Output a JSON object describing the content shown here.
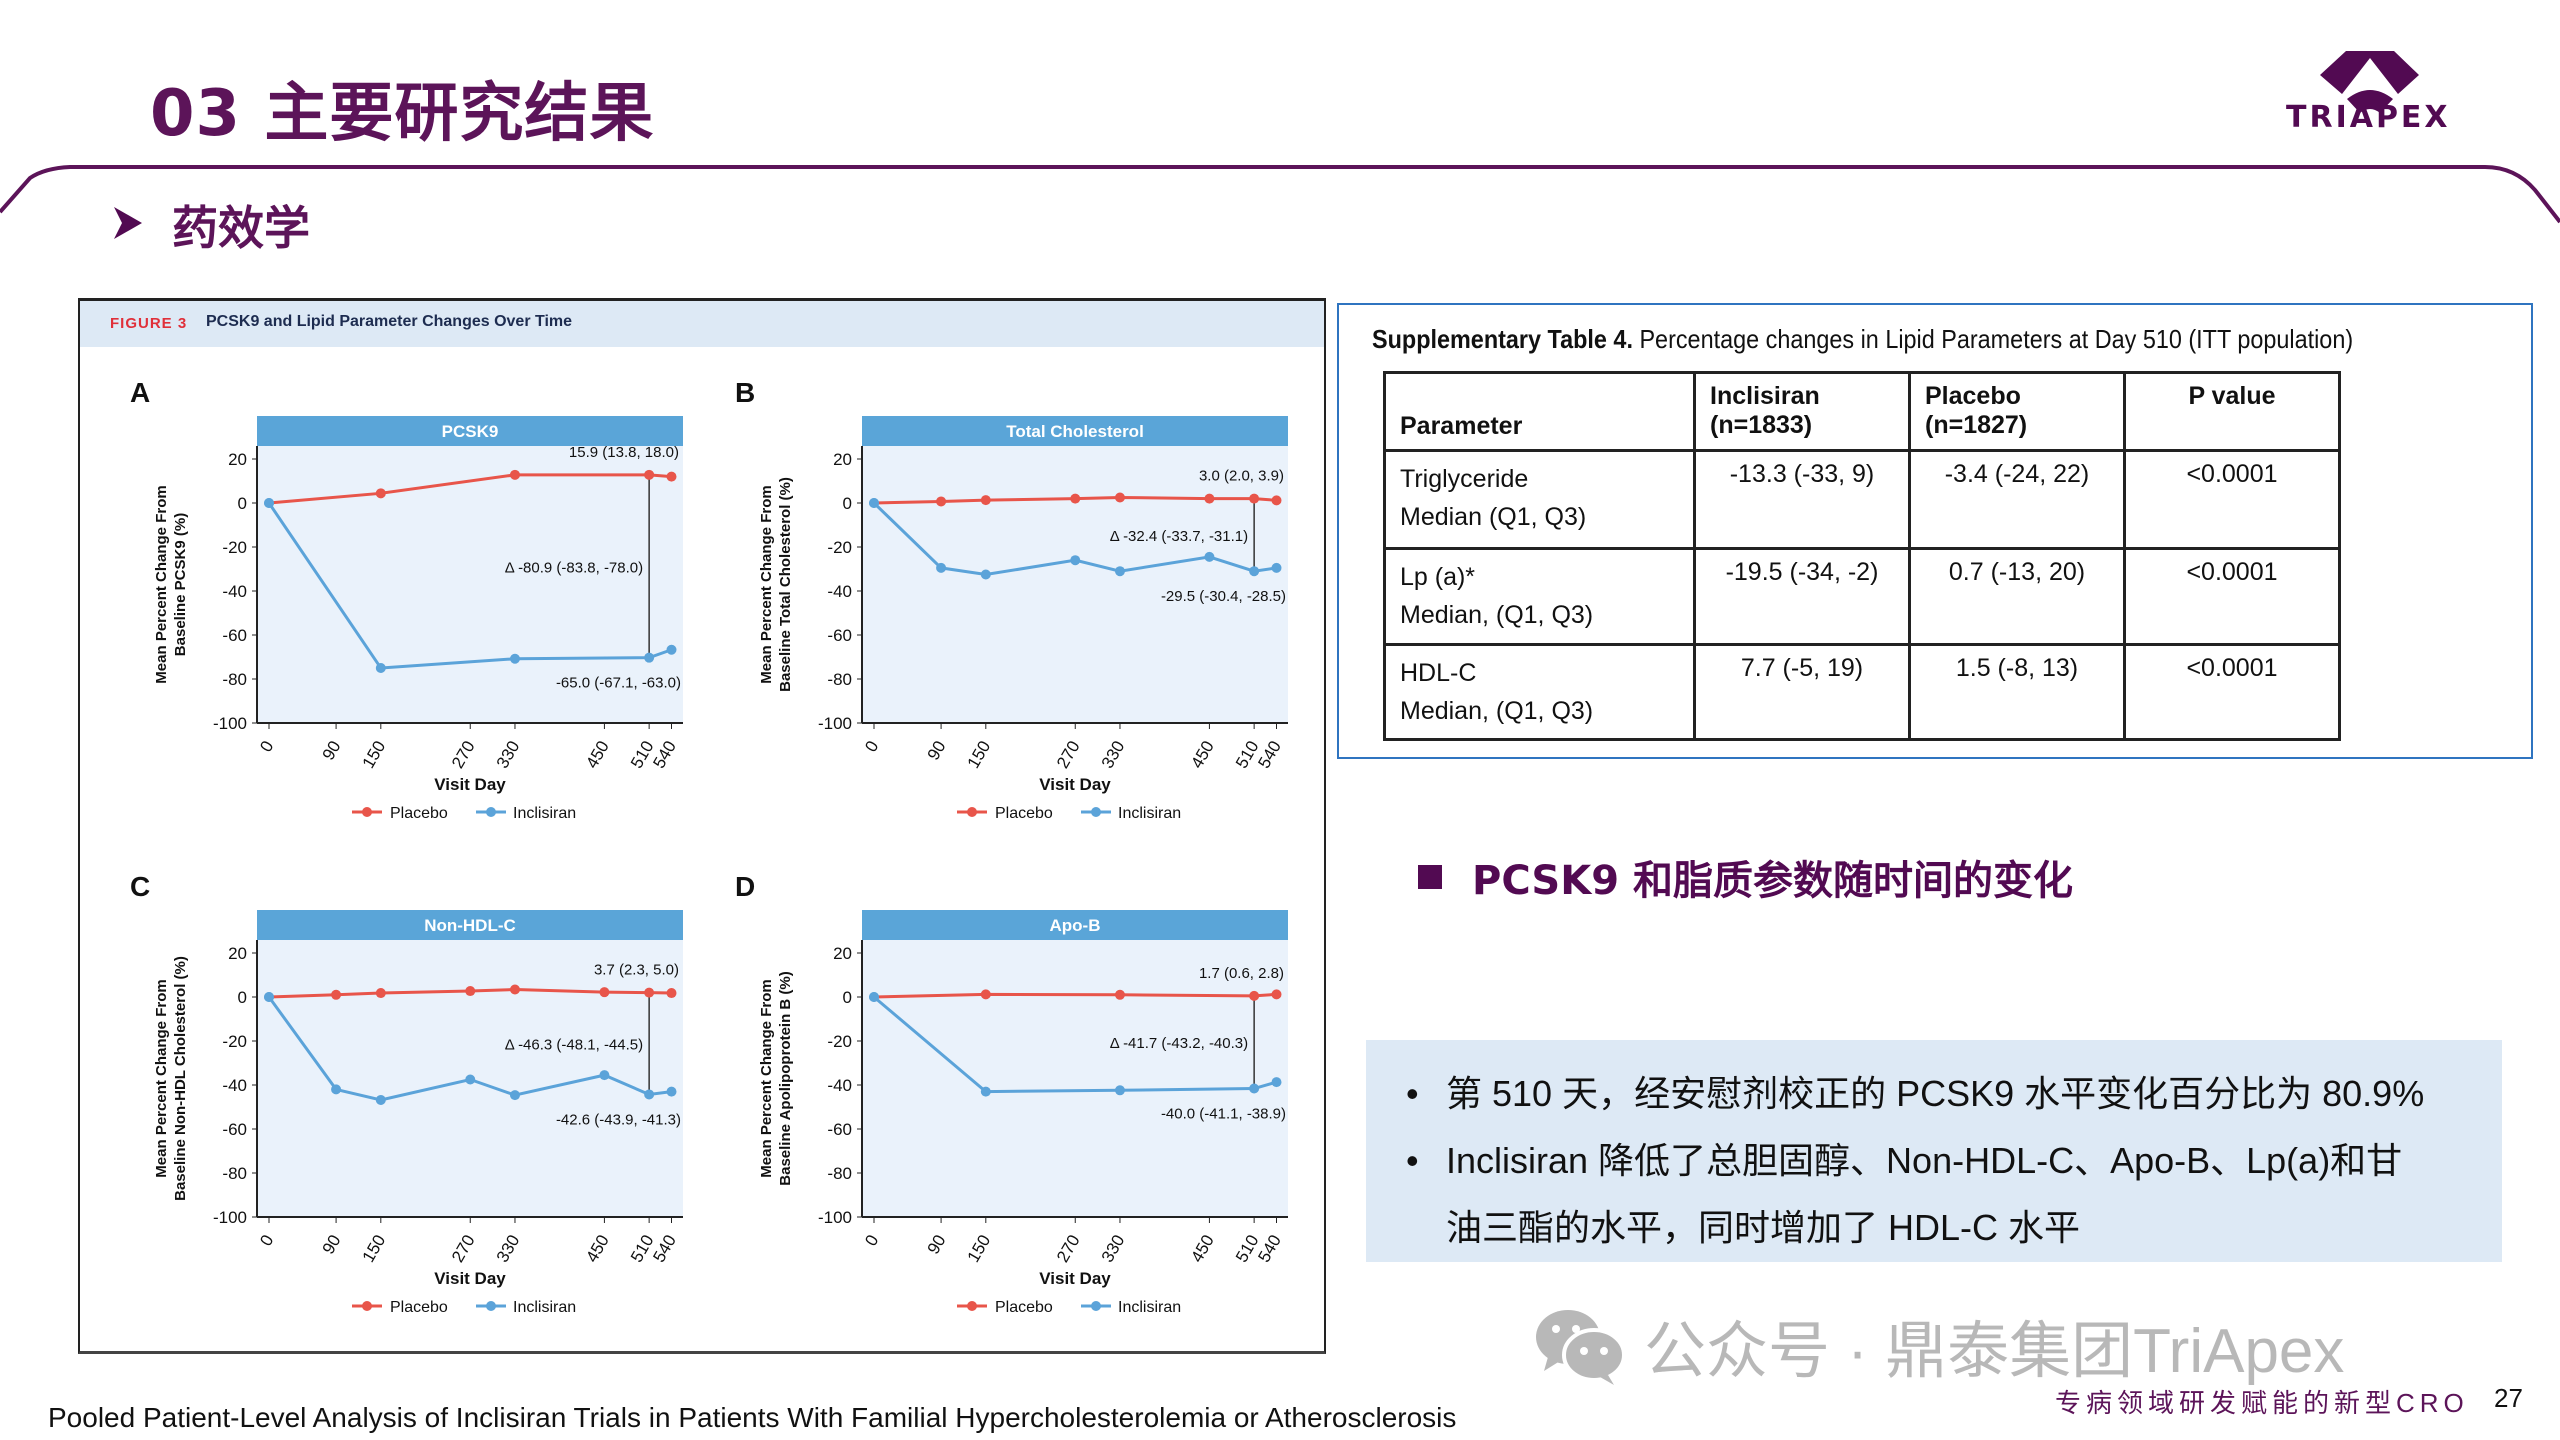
{
  "header": {
    "title": "03 主要研究结果",
    "subtitle": "药效学",
    "logo_text": "TRIAPEX",
    "brand_color": "#5c1459"
  },
  "figure": {
    "number": "FIGURE 3",
    "caption": "PCSK9 and Lipid Parameter Changes Over Time",
    "x_label": "Visit Day",
    "legend": {
      "placebo": "Placebo",
      "inclisiran": "Inclisiran"
    },
    "colors": {
      "placebo": "#e8554a",
      "inclisiran": "#5ba3d9",
      "header": "#5aa5d8",
      "plot_bg": "#eaf2fb"
    }
  },
  "chart_data": [
    {
      "type": "line",
      "panel": "A",
      "title": "PCSK9",
      "ylabel": [
        "Mean Percent Change From",
        "Baseline PCSK9 (%)"
      ],
      "xlabel": "Visit Day",
      "xticks": [
        0,
        90,
        150,
        270,
        330,
        450,
        510,
        540
      ],
      "yticks": [
        20,
        0,
        -20,
        -40,
        -60,
        -80,
        -100
      ],
      "ylim": [
        -100,
        26
      ],
      "xlim": [
        0,
        540
      ],
      "series": [
        {
          "name": "Placebo",
          "x": [
            0,
            150,
            330,
            510,
            540
          ],
          "y": [
            0,
            4.4,
            12.8,
            12.8,
            12
          ]
        },
        {
          "name": "Inclisiran",
          "x": [
            0,
            150,
            330,
            510,
            540
          ],
          "y": [
            0,
            -75,
            -70.8,
            -70.3,
            -66.7
          ]
        }
      ],
      "annotations": {
        "placebo": "15.9 (13.8, 18.0)",
        "delta": "Δ -80.9 (-83.8, -78.0)",
        "inclisiran": "-65.0 (-67.1, -63.0)"
      }
    },
    {
      "type": "line",
      "panel": "B",
      "title": "Total Cholesterol",
      "ylabel": [
        "Mean Percent Change From",
        "Baseline Total Cholesterol (%)"
      ],
      "xlabel": "Visit Day",
      "xticks": [
        0,
        90,
        150,
        270,
        330,
        450,
        510,
        540
      ],
      "yticks": [
        20,
        0,
        -20,
        -40,
        -60,
        -80,
        -100
      ],
      "ylim": [
        -100,
        26
      ],
      "xlim": [
        0,
        540
      ],
      "series": [
        {
          "name": "Placebo",
          "x": [
            0,
            90,
            150,
            270,
            330,
            450,
            510,
            540
          ],
          "y": [
            0,
            0.7,
            1.3,
            2,
            2.5,
            2,
            2,
            1.2
          ]
        },
        {
          "name": "Inclisiran",
          "x": [
            0,
            90,
            150,
            270,
            330,
            450,
            510,
            540
          ],
          "y": [
            0,
            -29.5,
            -32.5,
            -26,
            -31,
            -24.5,
            -31,
            -29.5
          ]
        }
      ],
      "annotations": {
        "placebo": "3.0 (2.0, 3.9)",
        "delta": "Δ -32.4 (-33.7, -31.1)",
        "inclisiran": "-29.5 (-30.4, -28.5)"
      }
    },
    {
      "type": "line",
      "panel": "C",
      "title": "Non-HDL-C",
      "ylabel": [
        "Mean Percent Change From",
        "Baseline Non-HDL Cholesterol (%)"
      ],
      "xlabel": "Visit Day",
      "xticks": [
        0,
        90,
        150,
        270,
        330,
        450,
        510,
        540
      ],
      "yticks": [
        20,
        0,
        -20,
        -40,
        -60,
        -80,
        -100
      ],
      "ylim": [
        -100,
        26
      ],
      "xlim": [
        0,
        540
      ],
      "series": [
        {
          "name": "Placebo",
          "x": [
            0,
            90,
            150,
            270,
            330,
            450,
            510,
            540
          ],
          "y": [
            0,
            1,
            1.8,
            2.7,
            3.4,
            2.2,
            2,
            1.8
          ]
        },
        {
          "name": "Inclisiran",
          "x": [
            0,
            90,
            150,
            270,
            330,
            450,
            510,
            540
          ],
          "y": [
            0,
            -42,
            -46.8,
            -37.5,
            -44.6,
            -35.5,
            -44.3,
            -43
          ]
        }
      ],
      "annotations": {
        "placebo": "3.7 (2.3, 5.0)",
        "delta": "Δ -46.3 (-48.1, -44.5)",
        "inclisiran": "-42.6 (-43.9, -41.3)"
      }
    },
    {
      "type": "line",
      "panel": "D",
      "title": "Apo-B",
      "ylabel": [
        "Mean Percent Change From",
        "Baseline Apolipoprotein B (%)"
      ],
      "xlabel": "Visit Day",
      "xticks": [
        0,
        90,
        150,
        270,
        330,
        450,
        510,
        540
      ],
      "yticks": [
        20,
        0,
        -20,
        -40,
        -60,
        -80,
        -100
      ],
      "ylim": [
        -100,
        26
      ],
      "xlim": [
        0,
        540
      ],
      "series": [
        {
          "name": "Placebo",
          "x": [
            0,
            150,
            330,
            510,
            540
          ],
          "y": [
            0,
            1.2,
            1,
            0.5,
            1.2
          ]
        },
        {
          "name": "Inclisiran",
          "x": [
            0,
            150,
            330,
            510,
            540
          ],
          "y": [
            0,
            -43,
            -42.4,
            -41.6,
            -38.7
          ]
        }
      ],
      "annotations": {
        "placebo": "1.7 (0.6, 2.8)",
        "delta": "Δ -41.7 (-43.2, -40.3)",
        "inclisiran": "-40.0 (-41.1, -38.9)"
      }
    }
  ],
  "table": {
    "caption_bold": "Supplementary  Table 4.",
    "caption_rest": " Percentage changes in Lipid Parameters at Day 510 (ITT  population)",
    "headers": [
      [
        "",
        "Parameter"
      ],
      [
        "Inclisiran",
        "(n=1833)"
      ],
      [
        "Placebo",
        "(n=1827)"
      ],
      [
        "P value",
        ""
      ]
    ],
    "rows": [
      {
        "name": "Triglyceride",
        "stat": "Median (Q1, Q3)",
        "inclisiran": "-13.3 (-33, 9)",
        "placebo": "-3.4 (-24, 22)",
        "p": "<0.0001"
      },
      {
        "name": "Lp (a)*",
        "stat": "Median, (Q1, Q3)",
        "inclisiran": "-19.5 (-34, -2)",
        "placebo": "0.7 (-13, 20)",
        "p": "<0.0001"
      },
      {
        "name": "HDL-C",
        "stat": "Median, (Q1, Q3)",
        "inclisiran": "7.7 (-5, 19)",
        "placebo": "1.5 (-8, 13)",
        "p": "<0.0001"
      }
    ]
  },
  "section": {
    "title": "PCSK9 和脂质参数随时间的变化"
  },
  "notes": [
    "第 510 天，经安慰剂校正的 PCSK9 水平变化百分比为 80.9%",
    "Inclisiran 降低了总胆固醇、Non-HDL-C、Apo-B、Lp(a)和甘",
    "油三酯的水平，同时增加了 HDL-C 水平"
  ],
  "bullet": "•",
  "watermark": "公众号 · 鼎泰集团TriApex",
  "footer": {
    "tagline": "专病领域研发赋能的新型CRO",
    "page": "27",
    "source": "Pooled Patient-Level Analysis of Inclisiran Trials in Patients With Familial Hypercholesterolemia or Atherosclerosis"
  }
}
